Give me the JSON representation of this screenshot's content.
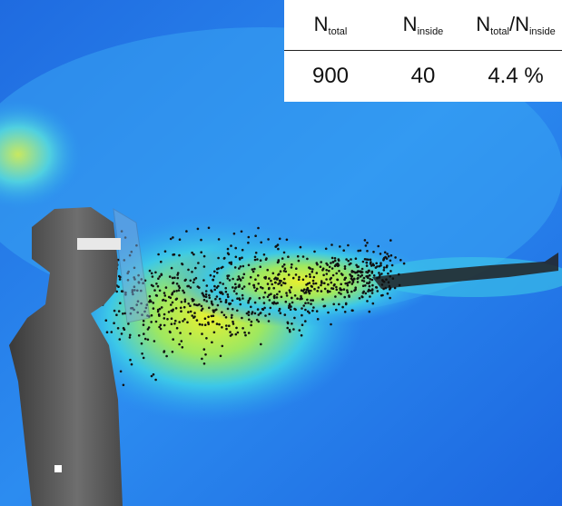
{
  "table": {
    "header": [
      [
        {
          "main": "N",
          "sub": "total"
        }
      ],
      [
        {
          "main": "N",
          "sub": "inside"
        }
      ],
      [
        {
          "main": "N",
          "sub": "total"
        },
        {
          "main": "/N",
          "sub": "inside"
        }
      ]
    ],
    "rows": [
      [
        "900",
        "40",
        "4.4 %"
      ]
    ]
  }
}
